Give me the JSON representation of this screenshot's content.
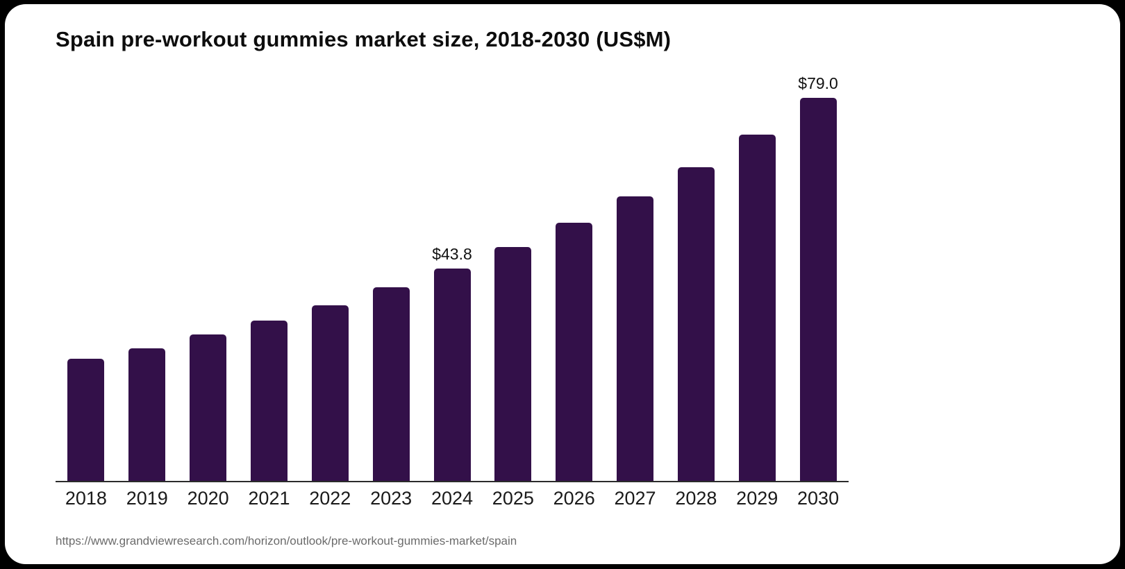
{
  "page": {
    "outer_background": "#000000",
    "card_background": "#ffffff"
  },
  "header": {
    "title": "Spain pre-workout gummies market size, 2018-2030 (US$M)"
  },
  "footer": {
    "source_url": "https://www.grandviewresearch.com/horizon/outlook/pre-workout-gummies-market/spain"
  },
  "chart_data": {
    "type": "bar",
    "title": "Spain pre-workout gummies market size, 2018-2030 (US$M)",
    "categories": [
      "2018",
      "2019",
      "2020",
      "2021",
      "2022",
      "2023",
      "2024",
      "2025",
      "2026",
      "2027",
      "2028",
      "2029",
      "2030"
    ],
    "values": [
      25.2,
      27.3,
      30.2,
      33.1,
      36.2,
      39.9,
      43.8,
      48.2,
      53.2,
      58.7,
      64.7,
      71.4,
      79.0
    ],
    "unit": "US$M",
    "xlabel": "",
    "ylabel": "",
    "ylim": [
      0,
      83
    ],
    "grid": false,
    "legend": false,
    "y_axis_shown": false,
    "bar_color": "#331049",
    "axis_color": "#2b2b2b",
    "data_labels": [
      {
        "index": 6,
        "text": "$43.8"
      },
      {
        "index": 12,
        "text": "$79.0"
      }
    ]
  }
}
